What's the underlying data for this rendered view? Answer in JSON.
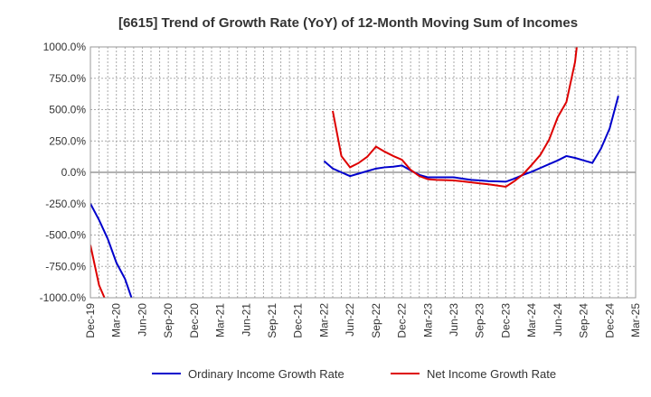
{
  "chart_data": {
    "type": "line",
    "title": "[6615]  Trend of Growth Rate (YoY) of 12-Month Moving Sum of Incomes",
    "xlabel": "",
    "ylabel": "",
    "ylim": [
      -1000,
      1000
    ],
    "y_ticks": [
      1000,
      750,
      500,
      250,
      0,
      -250,
      -500,
      -750,
      -1000
    ],
    "y_tick_labels": [
      "1000.0%",
      "750.0%",
      "500.0%",
      "250.0%",
      "0.0%",
      "-250.0%",
      "-500.0%",
      "-750.0%",
      "-1000.0%"
    ],
    "x_tick_labels": [
      "Dec-19",
      "Mar-20",
      "Jun-20",
      "Sep-20",
      "Dec-20",
      "Mar-21",
      "Jun-21",
      "Sep-21",
      "Dec-21",
      "Mar-22",
      "Jun-22",
      "Sep-22",
      "Dec-22",
      "Mar-23",
      "Jun-23",
      "Sep-23",
      "Dec-23",
      "Mar-24",
      "Jun-24",
      "Sep-24",
      "Dec-24",
      "Mar-25"
    ],
    "x": [
      "Dec-19",
      "Jan-20",
      "Feb-20",
      "Mar-20",
      "Apr-20",
      "May-20",
      "Jun-20",
      "Jul-20",
      "Aug-20",
      "Sep-20",
      "Oct-20",
      "Nov-20",
      "Dec-20",
      "Jan-21",
      "Feb-21",
      "Mar-21",
      "Apr-21",
      "May-21",
      "Jun-21",
      "Jul-21",
      "Aug-21",
      "Sep-21",
      "Oct-21",
      "Nov-21",
      "Dec-21",
      "Jan-22",
      "Feb-22",
      "Mar-22",
      "Apr-22",
      "May-22",
      "Jun-22",
      "Jul-22",
      "Aug-22",
      "Sep-22",
      "Oct-22",
      "Nov-22",
      "Dec-22",
      "Jan-23",
      "Feb-23",
      "Mar-23",
      "Apr-23",
      "May-23",
      "Jun-23",
      "Jul-23",
      "Aug-23",
      "Sep-23",
      "Oct-23",
      "Nov-23",
      "Dec-23",
      "Jan-24",
      "Feb-24",
      "Mar-24",
      "Apr-24",
      "May-24",
      "Jun-24",
      "Jul-24",
      "Aug-24",
      "Sep-24",
      "Oct-24",
      "Nov-24",
      "Dec-24"
    ],
    "series": [
      {
        "name": "Ordinary Income Growth Rate",
        "color": "#0000cc",
        "values": [
          -250,
          -380,
          -530,
          -720,
          -850,
          -1050,
          null,
          null,
          null,
          null,
          null,
          null,
          null,
          null,
          null,
          null,
          null,
          null,
          null,
          null,
          null,
          null,
          null,
          null,
          null,
          null,
          null,
          null,
          null,
          null,
          null,
          null,
          null,
          null,
          null,
          null,
          null,
          null,
          null,
          null,
          null,
          null,
          null,
          null,
          null,
          null,
          null,
          null,
          null,
          null,
          null,
          null,
          null,
          null,
          null,
          null,
          null,
          null,
          null,
          null,
          null
        ]
      },
      {
        "name": "Net Income Growth Rate",
        "color": "#dd0000",
        "values": [
          -580,
          -900,
          -1060,
          null,
          null,
          null,
          null,
          null,
          null,
          null,
          null,
          null,
          null,
          null,
          null,
          null,
          null,
          null,
          null,
          null,
          null,
          null,
          null,
          null,
          null,
          null,
          null,
          null,
          null,
          null,
          null,
          null,
          null,
          null,
          null,
          null,
          null,
          null,
          null,
          null,
          null,
          null,
          null,
          null,
          null,
          null,
          null,
          null,
          null,
          null,
          null,
          null,
          null,
          null,
          null,
          null,
          null,
          null,
          null,
          null,
          null
        ]
      },
      {
        "name": "Ordinary Income Growth Rate",
        "color": "#0000cc",
        "values": [
          null,
          null,
          null,
          null,
          null,
          null,
          null,
          null,
          null,
          null,
          null,
          null,
          null,
          null,
          null,
          null,
          null,
          null,
          null,
          null,
          null,
          null,
          null,
          null,
          null,
          null,
          null,
          null,
          null,
          null,
          null,
          null,
          null,
          null,
          null,
          null,
          null,
          null,
          null,
          null,
          null,
          null,
          null,
          null,
          null,
          null,
          null,
          null,
          null,
          null,
          null,
          null,
          null,
          null,
          null,
          null,
          null,
          null,
          null,
          null,
          null
        ]
      }
    ],
    "legend": [
      "Ordinary Income Growth Rate",
      "Net Income Growth Rate"
    ],
    "legend_placement": "bottom",
    "grid": true
  }
}
